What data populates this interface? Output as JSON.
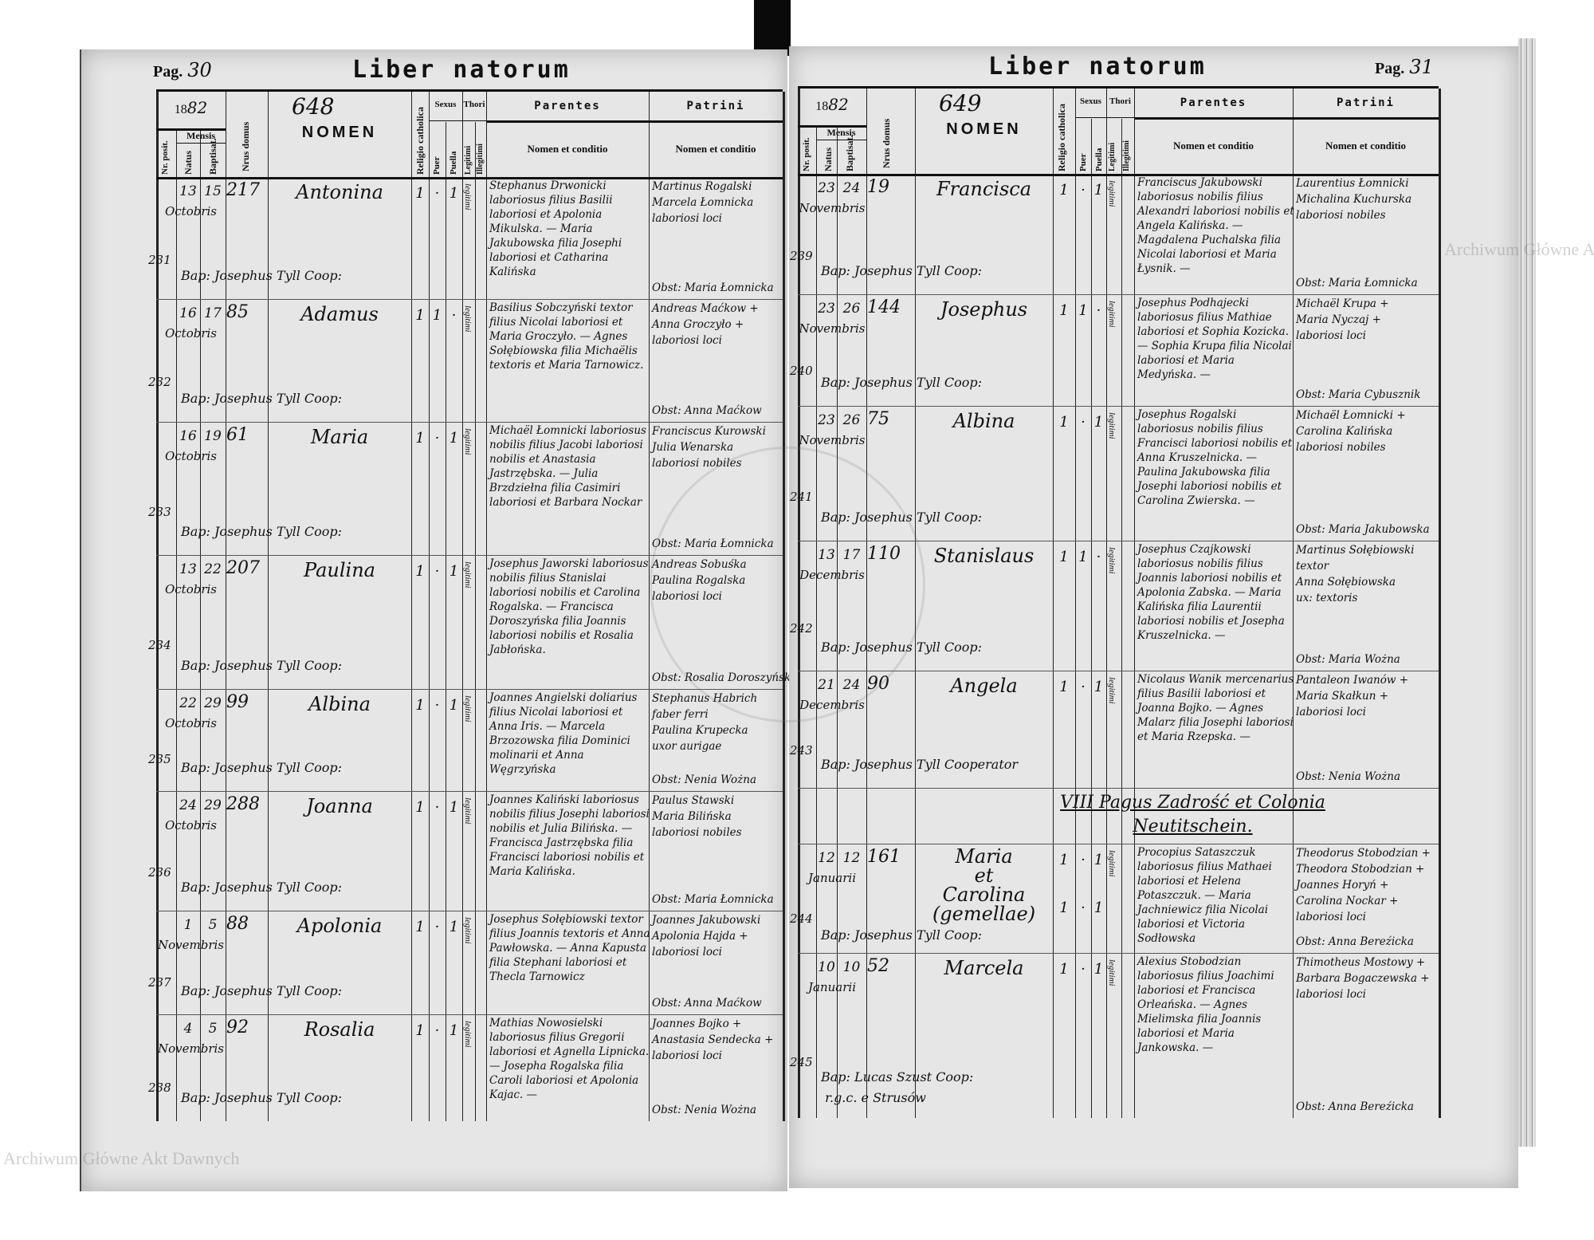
{
  "header": {
    "nr_posit": "Nr. posit.",
    "mensis": "Mensis",
    "natus": "Natus",
    "baptisat": "Baptisat.",
    "nrus_domus": "Nrus domus",
    "nomen": "NOMEN",
    "religio": "Religio catholica",
    "sexus": "Sexus",
    "puer": "Puer",
    "puella": "Puella",
    "thori": "Thori",
    "legitimi": "Legitimi",
    "illegitimi": "Illegitimi",
    "parentes": "Parentes",
    "patrini": "Patrini",
    "nomen_et_conditio": "Nomen et conditio"
  },
  "pages": [
    {
      "page_label": "Pag.",
      "page_number": "30",
      "title": "Liber natorum",
      "year_printed": "18",
      "year_written": "82",
      "entry_count": "648",
      "entries": [
        {
          "nr": "231",
          "natus": "13",
          "baptisat": "15",
          "mensis": "Octobris",
          "domus": "217",
          "nomen": "Antonina",
          "religio": "1",
          "puer": "·",
          "puella": "1",
          "thori": "legitimi",
          "parentes": "Stephanus Drwonicki laboriosus filius Basilii laboriosi et Apolonia Mikulska. — Maria Jakubowska filia Josephi laboriosi et Catharina Kalińska",
          "patrini": [
            "Martinus Rogalski",
            "Marcela Łomnicka",
            "laboriosi loci"
          ],
          "obstetrix": "Obst: Maria Łomnicka",
          "baptizans": "Bap: Josephus Tyll Coop:"
        },
        {
          "nr": "232",
          "natus": "16",
          "baptisat": "17",
          "mensis": "Octobris",
          "domus": "85",
          "nomen": "Adamus",
          "religio": "1",
          "puer": "1",
          "puella": "·",
          "thori": "legitimi",
          "parentes": "Basilius Sobczyński textor filius Nicolai laboriosi et Maria Groczyło. — Agnes Sołębiowska filia Michaëlis textoris et Maria Tarnowicz.",
          "patrini": [
            "Andreas Maćkow +",
            "Anna Groczyło +",
            "laboriosi loci"
          ],
          "obstetrix": "Obst: Anna Maćkow",
          "baptizans": "Bap: Josephus Tyll Coop:"
        },
        {
          "nr": "233",
          "natus": "16",
          "baptisat": "19",
          "mensis": "Octobris",
          "domus": "61",
          "nomen": "Maria",
          "religio": "1",
          "puer": "·",
          "puella": "1",
          "thori": "legitimi",
          "parentes": "Michaël Łomnicki laboriosus nobilis filius Jacobi laboriosi nobilis et Anastasia Jastrzębska. — Julia Brzdziełna filia Casimiri laboriosi et Barbara Nockar",
          "patrini": [
            "Franciscus Kurowski",
            "Julia Wenarska",
            "laboriosi nobiles"
          ],
          "obstetrix": "Obst: Maria Łomnicka",
          "baptizans": "Bap: Josephus Tyll Coop:"
        },
        {
          "nr": "234",
          "natus": "13",
          "baptisat": "22",
          "mensis": "Octobris",
          "domus": "207",
          "nomen": "Paulina",
          "religio": "1",
          "puer": "·",
          "puella": "1",
          "thori": "legitimi",
          "parentes": "Josephus Jaworski laboriosus nobilis filius Stanislai laboriosi nobilis et Carolina Rogalska. — Francisca Doroszyńska filia Joannis laboriosi nobilis et Rosalia Jabłońska.",
          "patrini": [
            "Andreas Sobuśka",
            "Paulina Rogalska",
            "laboriosi loci"
          ],
          "obstetrix": "Obst: Rosalia Doroszyńska",
          "baptizans": "Bap: Josephus Tyll Coop:"
        },
        {
          "nr": "235",
          "natus": "22",
          "baptisat": "29",
          "mensis": "Octobris",
          "domus": "99",
          "nomen": "Albina",
          "religio": "1",
          "puer": "·",
          "puella": "1",
          "thori": "legitimi",
          "parentes": "Joannes Angielski doliarius filius Nicolai laboriosi et Anna Iris. — Marcela Brzozowska filia Dominici molinarii et Anna Węgrzyńska",
          "patrini": [
            "Stephanus Habrich",
            "faber ferri",
            "Paulina Krupecka",
            "uxor aurigae"
          ],
          "obstetrix": "Obst: Nenia Wożna",
          "baptizans": "Bap: Josephus Tyll Coop:"
        },
        {
          "nr": "236",
          "natus": "24",
          "baptisat": "29",
          "mensis": "Octobris",
          "domus": "288",
          "nomen": "Joanna",
          "religio": "1",
          "puer": "·",
          "puella": "1",
          "thori": "legitimi",
          "parentes": "Joannes Kaliński laboriosus nobilis filius Josephi laboriosi nobilis et Julia Bilińska. — Francisca Jastrzębska filia Francisci laboriosi nobilis et Maria Kalińska.",
          "patrini": [
            "Paulus Stawski",
            "Maria Bilińska",
            "laboriosi nobiles"
          ],
          "obstetrix": "Obst: Maria Łomnicka",
          "baptizans": "Bap: Josephus Tyll Coop:"
        },
        {
          "nr": "237",
          "natus": "1",
          "baptisat": "5",
          "mensis": "Novembris",
          "domus": "88",
          "nomen": "Apolonia",
          "religio": "1",
          "puer": "·",
          "puella": "1",
          "thori": "legitimi",
          "parentes": "Josephus Sołębiowski textor filius Joannis textoris et Anna Pawłowska. — Anna Kapusta filia Stephani laboriosi et Thecla Tarnowicz",
          "patrini": [
            "Joannes Jakubowski",
            "Apolonia Hajda +",
            "laboriosi loci"
          ],
          "obstetrix": "Obst: Anna Maćkow",
          "baptizans": "Bap: Josephus Tyll Coop:"
        },
        {
          "nr": "238",
          "natus": "4",
          "baptisat": "5",
          "mensis": "Novembris",
          "domus": "92",
          "nomen": "Rosalia",
          "religio": "1",
          "puer": "·",
          "puella": "1",
          "thori": "legitimi",
          "parentes": "Mathias Nowosielski laboriosus filius Gregorii laboriosi et Agnella Lipnicka. — Josepha Rogalska filia Caroli laboriosi et Apolonia Kajac. —",
          "patrini": [
            "Joannes Bojko +",
            "Anastasia Sendecka +",
            "laboriosi loci"
          ],
          "obstetrix": "Obst: Nenia Wożna",
          "baptizans": "Bap: Josephus Tyll Coop:"
        }
      ]
    },
    {
      "page_label": "Pag.",
      "page_number": "31",
      "title": "Liber natorum",
      "year_printed": "18",
      "year_written": "82",
      "entry_count": "649",
      "entries": [
        {
          "nr": "239",
          "natus": "23",
          "baptisat": "24",
          "mensis": "Novembris",
          "domus": "19",
          "nomen": "Francisca",
          "religio": "1",
          "puer": "·",
          "puella": "1",
          "thori": "legitimi",
          "parentes": "Franciscus Jakubowski laboriosus nobilis filius Alexandri laboriosi nobilis et Angela Kalińska. — Magdalena Puchalska filia Nicolai laboriosi et Maria Łysnik. —",
          "patrini": [
            "Laurentius Łomnicki",
            "Michalina Kuchurska",
            "laboriosi nobiles"
          ],
          "obstetrix": "Obst: Maria Łomnicka",
          "baptizans": "Bap: Josephus Tyll Coop:"
        },
        {
          "nr": "240",
          "natus": "23",
          "baptisat": "26",
          "mensis": "Novembris",
          "domus": "144",
          "nomen": "Josephus",
          "religio": "1",
          "puer": "1",
          "puella": "·",
          "thori": "legitimi",
          "parentes": "Josephus Podhajecki laboriosus filius Mathiae laboriosi et Sophia Kozicka. — Sophia Krupa filia Nicolai laboriosi et Maria Medyńska. —",
          "patrini": [
            "Michaël Krupa +",
            "Maria Nyczaj +",
            "laboriosi loci"
          ],
          "obstetrix": "Obst: Maria Cybusznik",
          "baptizans": "Bap: Josephus Tyll Coop:"
        },
        {
          "nr": "241",
          "natus": "23",
          "baptisat": "26",
          "mensis": "Novembris",
          "domus": "75",
          "nomen": "Albina",
          "religio": "1",
          "puer": "·",
          "puella": "1",
          "thori": "legitimi",
          "parentes": "Josephus Rogalski laboriosus nobilis filius Francisci laboriosi nobilis et Anna Kruszelnicka. — Paulina Jakubowska filia Josephi laboriosi nobilis et Carolina Zwierska. —",
          "patrini": [
            "Michaël Łomnicki +",
            "Carolina Kalińska",
            "laboriosi nobiles"
          ],
          "obstetrix": "Obst: Maria Jakubowska",
          "baptizans": "Bap: Josephus Tyll Coop:"
        },
        {
          "nr": "242",
          "natus": "13",
          "baptisat": "17",
          "mensis": "Decembris",
          "domus": "110",
          "nomen": "Stanislaus",
          "religio": "1",
          "puer": "1",
          "puella": "·",
          "thori": "legitimi",
          "parentes": "Josephus Czajkowski laboriosus nobilis filius Joannis laboriosi nobilis et Apolonia Zabska. — Maria Kalińska filia Laurentii laboriosi nobilis et Josepha Kruszelnicka. —",
          "patrini": [
            "Martinus Sołębiowski",
            "textor",
            "Anna Sołębiowska",
            "ux: textoris"
          ],
          "obstetrix": "Obst: Maria Wożna",
          "baptizans": "Bap: Josephus Tyll Coop:"
        },
        {
          "nr": "243",
          "natus": "21",
          "baptisat": "24",
          "mensis": "Decembris",
          "domus": "90",
          "nomen": "Angela",
          "religio": "1",
          "puer": "·",
          "puella": "1",
          "thori": "legitimi",
          "parentes": "Nicolaus Wanik mercenarius filius Basilii laboriosi et Joanna Bojko. — Agnes Malarz filia Josephi laboriosi et Maria Rzepska. —",
          "patrini": [
            "Pantaleon Iwanów +",
            "Maria Skałkun +",
            "laboriosi loci"
          ],
          "obstetrix": "Obst: Nenia Wożna",
          "baptizans": "Bap: Josephus Tyll Cooperator"
        },
        {
          "section": true,
          "line1": "VIII Pagus Zadrość et Colonia",
          "line2": "Neutitschein."
        },
        {
          "nr": "244",
          "natus": "12",
          "baptisat": "12",
          "mensis": "Januarii",
          "domus": "161",
          "nomen": "Maria\net\nCarolina\n(gemellae)",
          "religio": "1\n\n1",
          "puer": "·\n\n·",
          "puella": "1\n\n1",
          "thori": "legitimi",
          "parentes": "Procopius Sataszczuk laboriosus filius Mathaei laboriosi et Helena Potaszczuk. — Maria Jachniewicz filia Nicolai laboriosi et Victoria Sodłowska",
          "patrini": [
            "Theodorus Stobodzian +",
            "Theodora Stobodzian +",
            "Joannes Horyń +",
            "Carolina Nockar +",
            "laboriosi loci"
          ],
          "obstetrix": "Obst: Anna Bereźicka",
          "baptizans": "Bap: Josephus Tyll Coop:"
        },
        {
          "nr": "245",
          "natus": "10",
          "baptisat": "10",
          "mensis": "Januarii",
          "domus": "52",
          "nomen": "Marcela",
          "religio": "1",
          "puer": "·",
          "puella": "1",
          "thori": "legitimi",
          "parentes": "Alexius Stobodzian laboriosus filius Joachimi laboriosi et Francisca Orleańska. — Agnes Mielimska filia Joannis laboriosi et Maria Jankowska. —",
          "patrini": [
            "Thimotheus Mostowy +",
            "Barbara Bogaczewska +",
            "laboriosi loci"
          ],
          "obstetrix": "Obst: Anna Bereźicka",
          "baptizans": "Bap: Lucas Szust Coop:\n r.g.c. e Strusów"
        }
      ]
    }
  ],
  "watermarks": [
    "Archiwum Główne Akt Dawnych",
    "Archiwum Główne Akt Dawnych",
    "ARCHIWUM GŁÓWNE AKT DAWNYCH"
  ]
}
